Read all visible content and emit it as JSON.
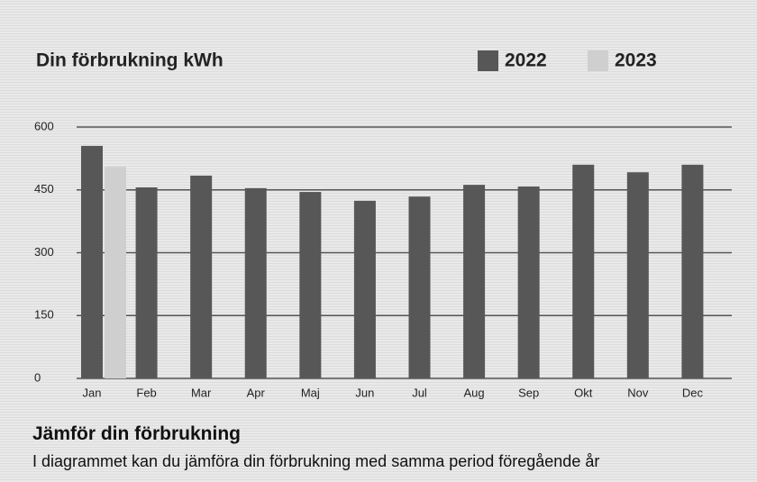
{
  "chart_data": {
    "type": "bar",
    "title": "Din förbrukning kWh",
    "categories": [
      "Jan",
      "Feb",
      "Mar",
      "Apr",
      "Maj",
      "Jun",
      "Jul",
      "Aug",
      "Sep",
      "Okt",
      "Nov",
      "Dec"
    ],
    "series": [
      {
        "name": "2022",
        "color": "#575757",
        "values": [
          555,
          456,
          484,
          454,
          445,
          424,
          434,
          462,
          458,
          510,
          492,
          510
        ]
      },
      {
        "name": "2023",
        "color": "#cfcfcf",
        "values": [
          505,
          null,
          null,
          null,
          null,
          null,
          null,
          null,
          null,
          null,
          null,
          null
        ]
      }
    ],
    "ylim": [
      0,
      600
    ],
    "yticks": [
      0,
      150,
      300,
      450,
      600
    ],
    "grid": true,
    "legend": "top-right"
  },
  "section": {
    "heading": "Jämför din förbrukning",
    "text": "I diagrammet kan du jämföra din förbrukning med samma period föregående år"
  }
}
